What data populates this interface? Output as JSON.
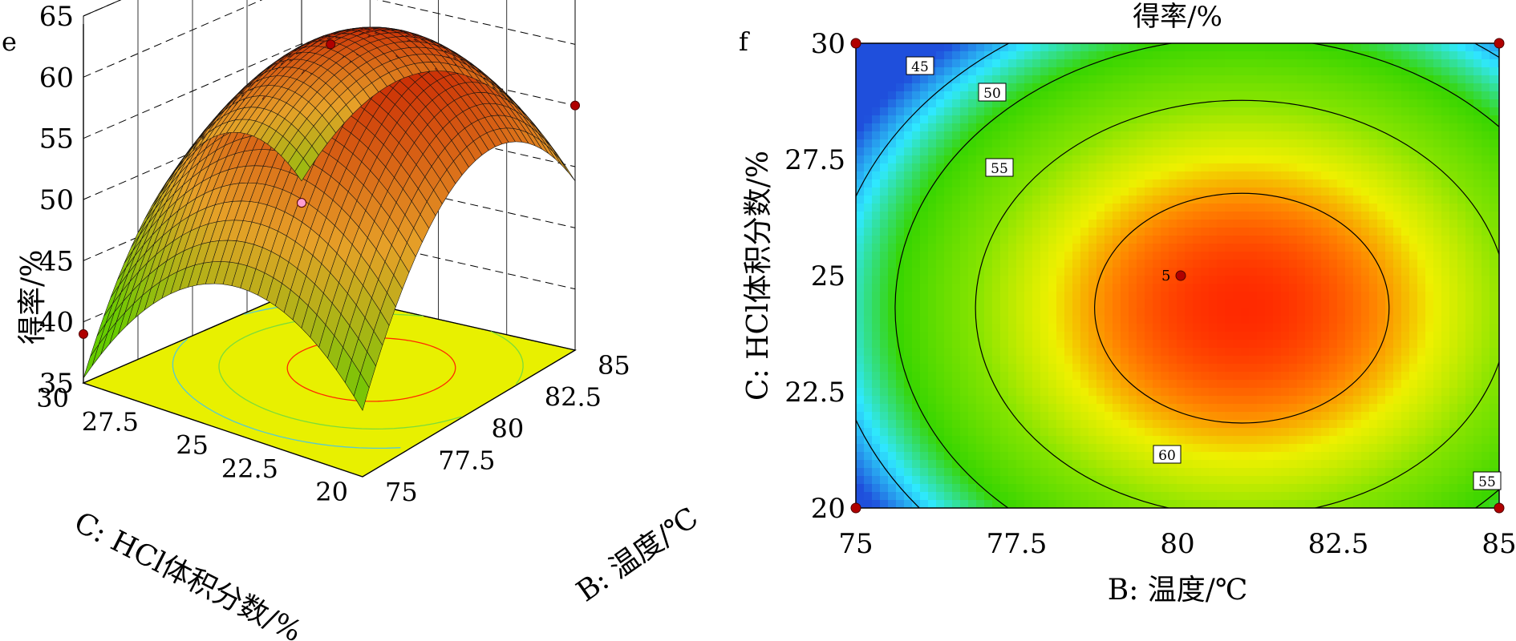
{
  "panels": {
    "left_label": "e",
    "right_label": "f"
  },
  "chart_data": [
    {
      "type": "surface",
      "response_label": "得率/%",
      "z_ticks": [
        "35",
        "40",
        "45",
        "50",
        "55",
        "60",
        "65"
      ],
      "zlim": [
        35,
        65
      ],
      "x_axis": {
        "label": "B: 温度/℃",
        "ticks": [
          "75",
          "77.5",
          "80",
          "82.5",
          "85"
        ],
        "range": [
          75,
          85
        ]
      },
      "y_axis": {
        "label": "C: HCl体积分数/%",
        "ticks": [
          "30",
          "27.5",
          "25",
          "22.5",
          "20"
        ],
        "range": [
          20,
          30
        ]
      },
      "surface_model": {
        "peak_temperature": 81,
        "peak_hcl": 24.3,
        "peak_yield": 62.2
      },
      "design_points": [
        {
          "temperature": 75,
          "hcl": 30,
          "yield": 39
        },
        {
          "temperature": 80,
          "hcl": 25,
          "yield": 62
        },
        {
          "temperature": 85,
          "hcl": 20,
          "yield": 55
        },
        {
          "temperature": 85,
          "hcl": 30,
          "yield": 42
        }
      ],
      "floor_color": "#e8f000",
      "surface_colors": {
        "low": "#66cc00",
        "high": "#c81e00"
      }
    },
    {
      "type": "contour",
      "title": "得率/%",
      "x_axis": {
        "label": "B: 温度/℃",
        "ticks": [
          "75",
          "77.5",
          "80",
          "82.5",
          "85"
        ],
        "range": [
          75,
          85
        ]
      },
      "y_axis": {
        "label": "C: HCl体积分数/%",
        "ticks": [
          "20",
          "22.5",
          "25",
          "27.5",
          "30"
        ],
        "range": [
          20,
          30
        ]
      },
      "contour_levels": [
        {
          "level": 45,
          "label": "45"
        },
        {
          "level": 50,
          "label": "50"
        },
        {
          "level": 55,
          "label": "55"
        },
        {
          "level": 55,
          "label": "55"
        },
        {
          "level": 60,
          "label": "60"
        }
      ],
      "center_point": {
        "temperature": 80,
        "hcl": 25,
        "label": "5"
      },
      "corner_points": [
        {
          "temperature": 75,
          "hcl": 20
        },
        {
          "temperature": 75,
          "hcl": 30
        },
        {
          "temperature": 85,
          "hcl": 20
        },
        {
          "temperature": 85,
          "hcl": 30
        }
      ],
      "colormap": [
        "#1f4fdc",
        "#2fe8ff",
        "#37d500",
        "#86e400",
        "#eef000",
        "#ff8000",
        "#ff1a00"
      ]
    }
  ]
}
